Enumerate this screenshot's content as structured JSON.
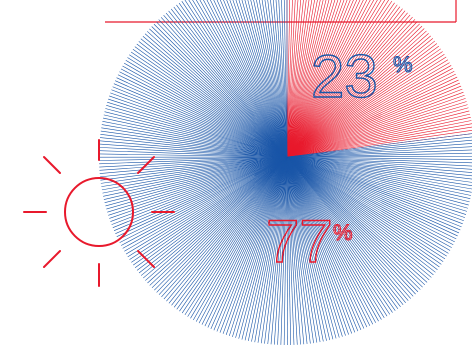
{
  "chart_data": {
    "type": "pie",
    "title": "",
    "categories": [
      "",
      ""
    ],
    "values": [
      23,
      77
    ],
    "value_suffix": "%",
    "labels": [
      "23",
      "77"
    ],
    "percent_sign": "%",
    "colors": [
      "#e8192c",
      "#1a56a8"
    ],
    "style": "radial line burst",
    "legend": "none"
  },
  "decorations": {
    "sun_icon": "sun-icon",
    "sun_color": "#e8192c",
    "frame_color": "#e8192c"
  }
}
